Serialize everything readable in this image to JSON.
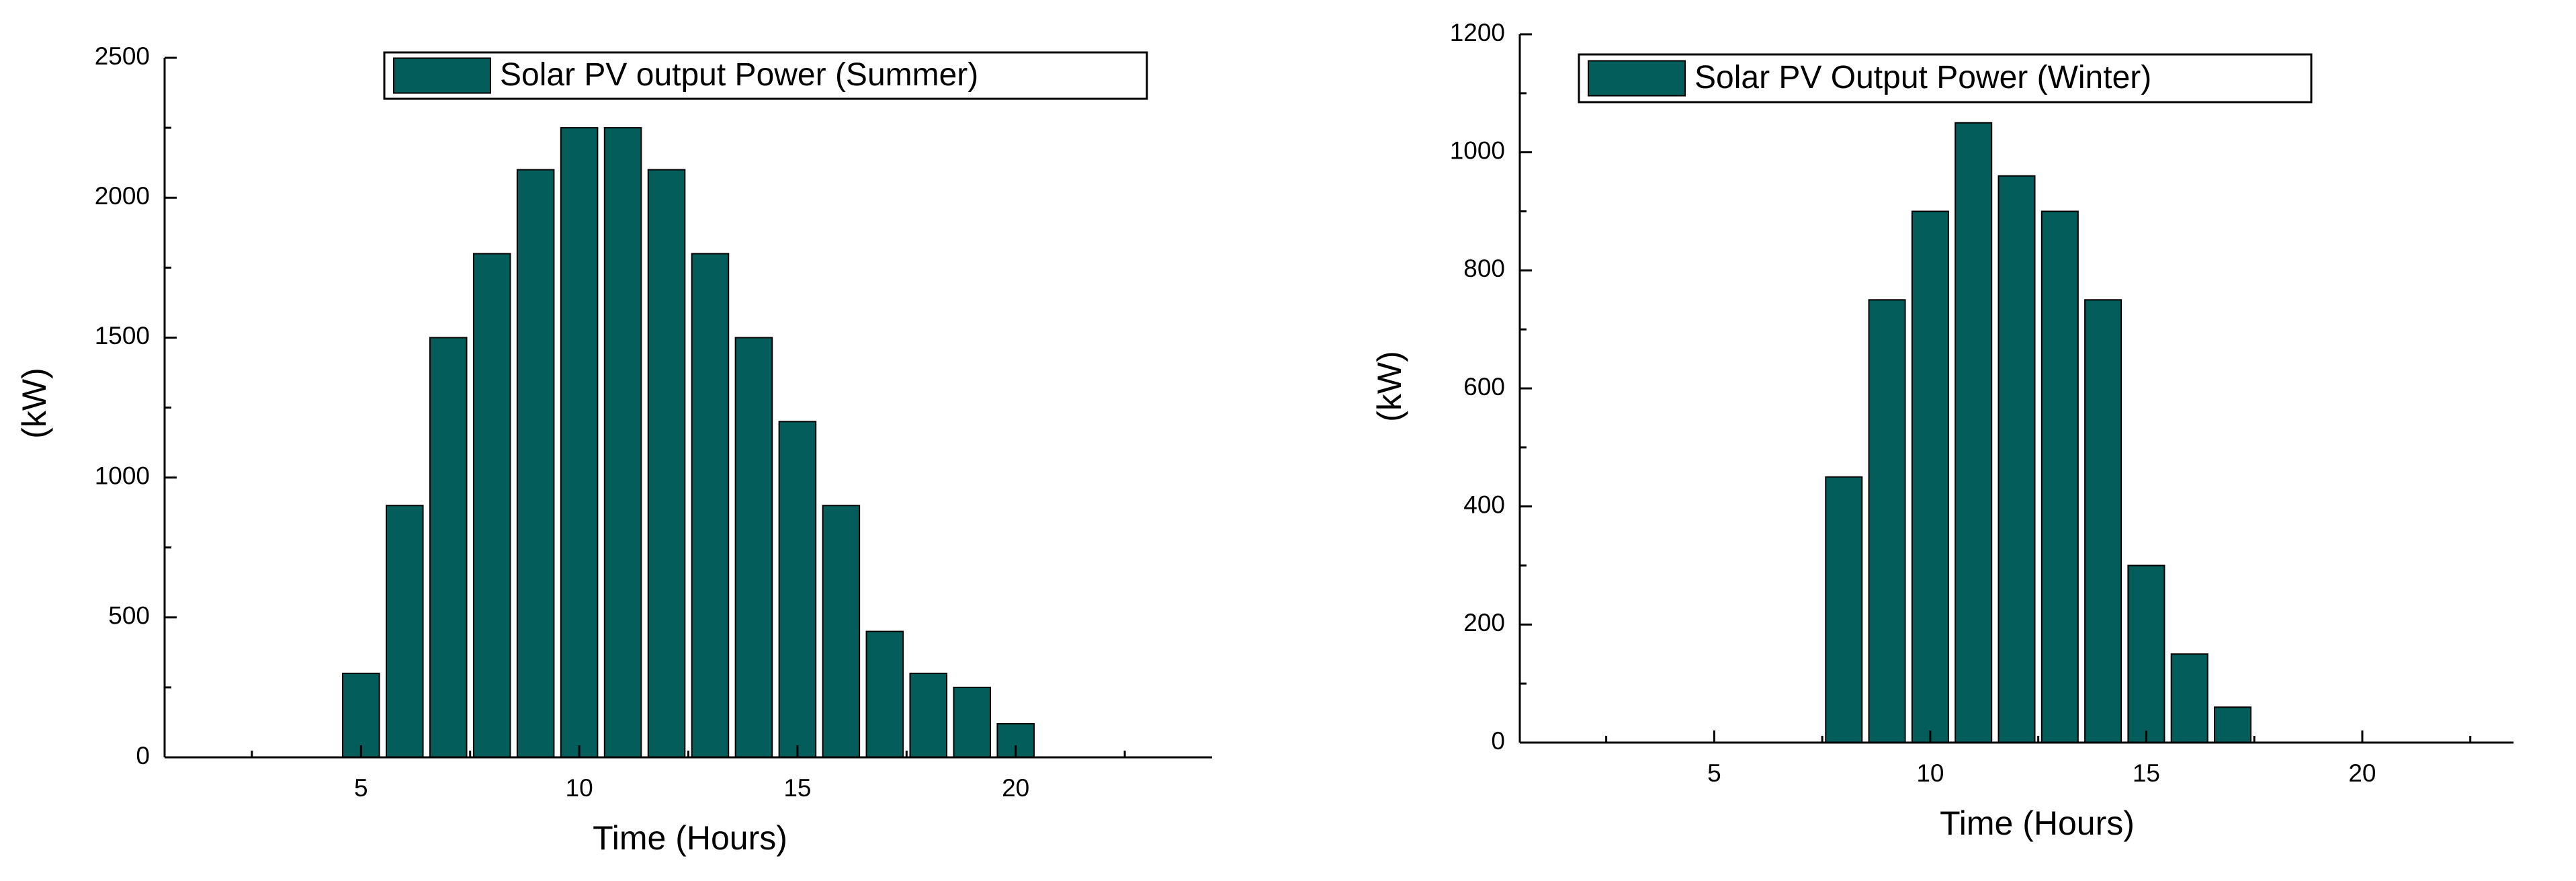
{
  "chart_data": [
    {
      "type": "bar",
      "x_label": "Time (Hours)",
      "y_label": "(kW)",
      "series": [
        {
          "name": "Solar PV output Power (Summer)",
          "color": "#035e5b",
          "x": [
            5,
            6,
            7,
            8,
            9,
            10,
            11,
            12,
            13,
            14,
            15,
            16,
            17,
            18,
            19,
            20
          ],
          "values": [
            300,
            900,
            1500,
            1800,
            2100,
            2250,
            2250,
            2100,
            1800,
            1500,
            1200,
            900,
            450,
            300,
            250,
            120
          ]
        }
      ],
      "xlim": [
        0.5,
        24.5
      ],
      "xticks": [
        5,
        10,
        15,
        20
      ],
      "ylim": [
        0,
        2500
      ],
      "yticks": [
        0,
        500,
        1000,
        1500,
        2000,
        2500
      ]
    },
    {
      "type": "bar",
      "x_label": "Time (Hours)",
      "y_label": "(kW)",
      "series": [
        {
          "name": "Solar PV Output Power (Winter)",
          "color": "#035e5b",
          "x": [
            8,
            9,
            10,
            11,
            12,
            13,
            14,
            15,
            16,
            17
          ],
          "values": [
            450,
            750,
            900,
            1050,
            960,
            900,
            750,
            300,
            150,
            60
          ]
        }
      ],
      "xlim": [
        0.5,
        23.5
      ],
      "xticks": [
        5,
        10,
        15,
        20
      ],
      "ylim": [
        0,
        1200
      ],
      "yticks": [
        0,
        200,
        400,
        600,
        800,
        1000,
        1200
      ]
    }
  ]
}
